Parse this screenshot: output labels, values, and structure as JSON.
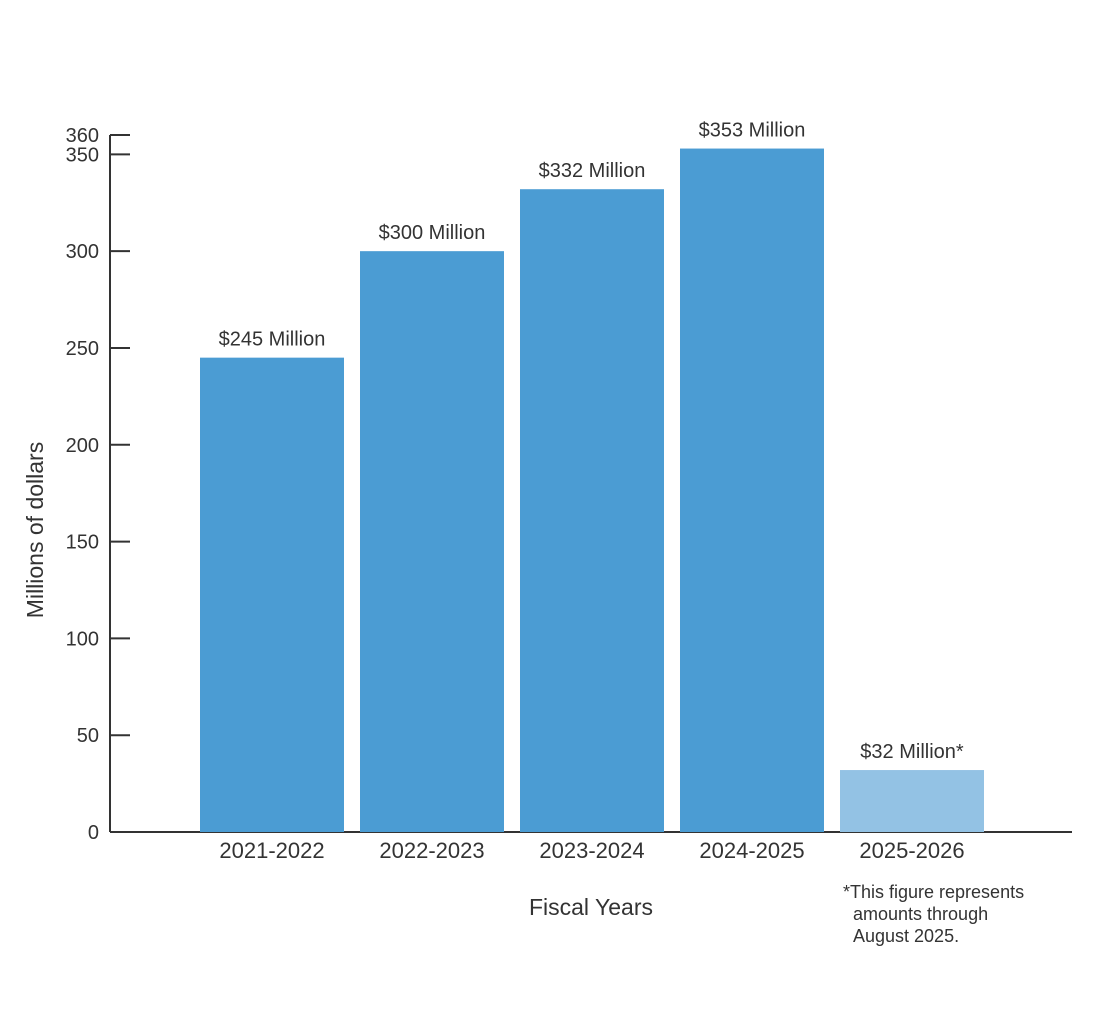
{
  "chart_data": {
    "type": "bar",
    "title": "",
    "xlabel": "Fiscal Years",
    "ylabel": "Millions of dollars",
    "ylim": [
      0,
      360
    ],
    "yticks": [
      0,
      50,
      100,
      150,
      200,
      250,
      300,
      350,
      360
    ],
    "grid": false,
    "categories": [
      "2021-2022",
      "2022-2023",
      "2023-2024",
      "2024-2025",
      "2025-2026"
    ],
    "values": [
      245,
      300,
      332,
      353,
      32
    ],
    "data_labels": [
      "$245 Million",
      "$300 Million",
      "$332 Million",
      "$353 Million",
      "$32 Million*"
    ],
    "colors": [
      "#4b9cd3",
      "#4b9cd3",
      "#4b9cd3",
      "#4b9cd3",
      "#93c2e4"
    ],
    "axis_color": "#333333",
    "footnote": [
      "*This figure represents",
      "amounts through",
      "August 2025."
    ]
  }
}
